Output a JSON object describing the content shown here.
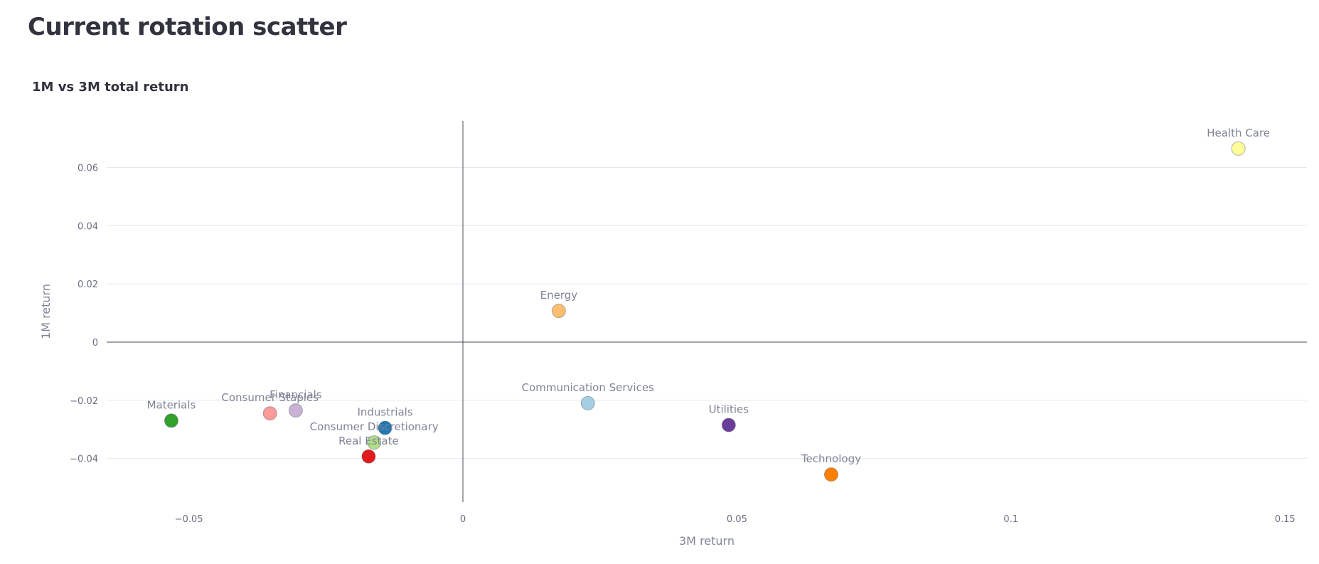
{
  "page": {
    "title": "Current rotation scatter"
  },
  "chart_data": {
    "type": "scatter",
    "title": "1M vs 3M total return",
    "xlabel": "3M return",
    "ylabel": "1M return",
    "xlim": [
      -0.065,
      0.154
    ],
    "ylim": [
      -0.055,
      0.076
    ],
    "x_ticks": [
      {
        "value": -0.05,
        "label": "−0.05"
      },
      {
        "value": 0,
        "label": "0"
      },
      {
        "value": 0.05,
        "label": "0.05"
      },
      {
        "value": 0.1,
        "label": "0.1"
      },
      {
        "value": 0.15,
        "label": "0.15"
      }
    ],
    "y_ticks": [
      {
        "value": -0.04,
        "label": "−0.04"
      },
      {
        "value": -0.02,
        "label": "−0.02"
      },
      {
        "value": 0,
        "label": "0"
      },
      {
        "value": 0.02,
        "label": "0.02"
      },
      {
        "value": 0.04,
        "label": "0.04"
      },
      {
        "value": 0.06,
        "label": "0.06"
      }
    ],
    "points": [
      {
        "name": "Health Care",
        "x": 0.1415,
        "y": 0.0665,
        "color": "#ffff99"
      },
      {
        "name": "Energy",
        "x": 0.0175,
        "y": 0.0107,
        "color": "#fdbf6f"
      },
      {
        "name": "Communication Services",
        "x": 0.0228,
        "y": -0.021,
        "color": "#a6cee3"
      },
      {
        "name": "Utilities",
        "x": 0.0485,
        "y": -0.0285,
        "color": "#6a3d9a"
      },
      {
        "name": "Technology",
        "x": 0.0672,
        "y": -0.0455,
        "color": "#ff7f00"
      },
      {
        "name": "Materials",
        "x": -0.0532,
        "y": -0.027,
        "color": "#33a02c"
      },
      {
        "name": "Consumer Staples",
        "x": -0.0352,
        "y": -0.0245,
        "color": "#fb9a99"
      },
      {
        "name": "Financials",
        "x": -0.0305,
        "y": -0.0235,
        "color": "#cab2d6"
      },
      {
        "name": "Industrials",
        "x": -0.0142,
        "y": -0.0295,
        "color": "#1f78b4"
      },
      {
        "name": "Consumer Discretionary",
        "x": -0.0162,
        "y": -0.0345,
        "color": "#b2df8a"
      },
      {
        "name": "Real Estate",
        "x": -0.0172,
        "y": -0.0393,
        "color": "#e31a1c"
      }
    ]
  }
}
